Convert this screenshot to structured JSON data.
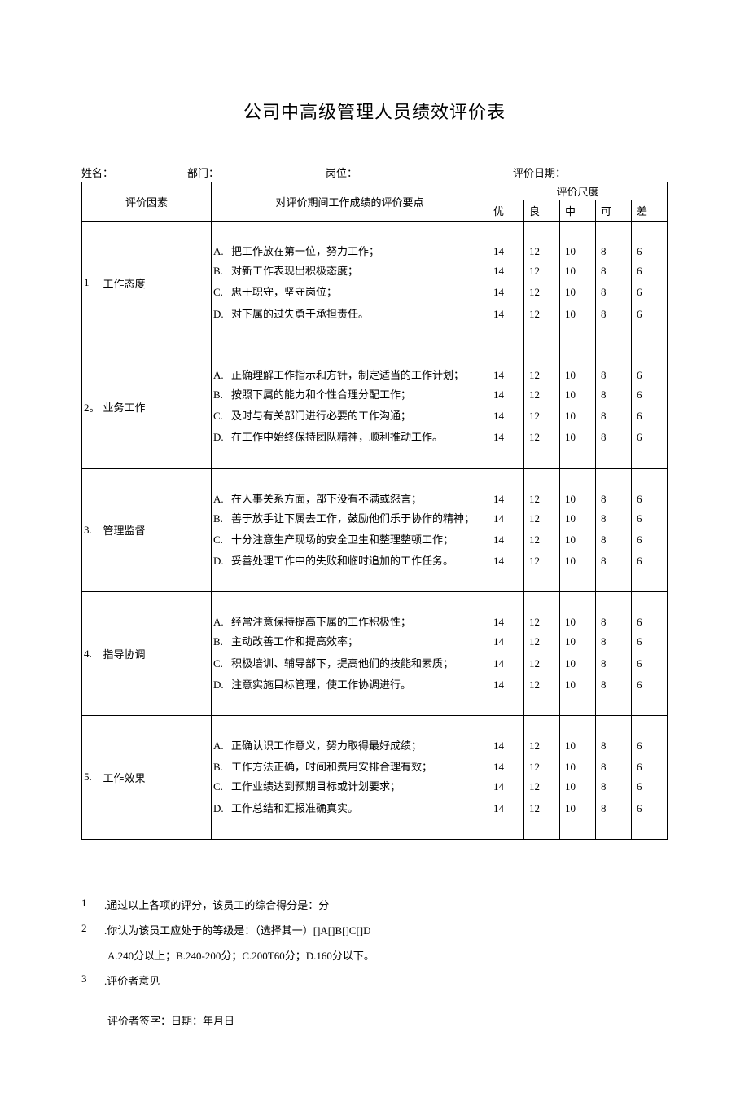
{
  "title": "公司中高级管理人员绩效评价表",
  "header_fields": {
    "name_label": "姓名：",
    "dept_label": "部门：",
    "post_label": "岗位：",
    "date_label": "评价日期：",
    "name_value": "",
    "dept_value": "",
    "post_value": "",
    "date_value": ""
  },
  "table_headers": {
    "factor": "评价因素",
    "criteria": "对评价期间工作成绩的评价要点",
    "scale": "评价尺度",
    "levels": [
      "优",
      "良",
      "中",
      "可",
      "差"
    ]
  },
  "scores": [
    14,
    12,
    10,
    8,
    6
  ],
  "sections": [
    {
      "num": "1",
      "name": "工作态度",
      "items": [
        {
          "marker": "A.",
          "text": "把工作放在第一位，努力工作；"
        },
        {
          "marker": "B.",
          "text": "对新工作表现出积极态度；"
        },
        {
          "marker": "C.",
          "text": "忠于职守，坚守岗位；"
        },
        {
          "marker": "D.",
          "text": "对下属的过失勇于承担责任。"
        }
      ],
      "gaps": [
        false,
        false,
        true,
        true
      ]
    },
    {
      "num": "2。",
      "name": "业务工作",
      "items": [
        {
          "marker": "A.",
          "text": "正确理解工作指示和方针，制定适当的工作计划；"
        },
        {
          "marker": "B.",
          "text": "按照下属的能力和个性合理分配工作；"
        },
        {
          "marker": "C.",
          "text": "及时与有关部门进行必要的工作沟通；"
        },
        {
          "marker": "D.",
          "text": "在工作中始终保持团队精神，顺利推动工作。"
        }
      ],
      "gaps": [
        false,
        false,
        true,
        true
      ]
    },
    {
      "num": "3.",
      "name": "管理监督",
      "items": [
        {
          "marker": "A.",
          "text": "在人事关系方面，部下没有不满或怨言；"
        },
        {
          "marker": "B.",
          "text": "善于放手让下属去工作，鼓励他们乐于协作的精神；"
        },
        {
          "marker": "C.",
          "text": "十分注意生产现场的安全卫生和整理整顿工作；"
        },
        {
          "marker": "D.",
          "text": "妥善处理工作中的失败和临时追加的工作任务。"
        }
      ],
      "gaps": [
        false,
        false,
        true,
        true
      ]
    },
    {
      "num": "4.",
      "name": "指导协调",
      "items": [
        {
          "marker": "A.",
          "text": "经常注意保持提高下属的工作积极性；"
        },
        {
          "marker": "B.",
          "text": "主动改善工作和提高效率；"
        },
        {
          "marker": "C.",
          "text": "积极培训、辅导部下，提高他们的技能和素质；"
        },
        {
          "marker": "D.",
          "text": "注意实施目标管理，使工作协调进行。"
        }
      ],
      "gaps": [
        false,
        false,
        true,
        true
      ]
    },
    {
      "num": "5.",
      "name": "工作效果",
      "items": [
        {
          "marker": "A.",
          "text": "正确认识工作意义，努力取得最好成绩；"
        },
        {
          "marker": "B.",
          "text": "工作方法正确，时间和费用安排合理有效；"
        },
        {
          "marker": "C.",
          "text": "工作业绩达到预期目标或计划要求；"
        },
        {
          "marker": "D.",
          "text": "工作总结和汇报准确真实。"
        }
      ],
      "gaps": [
        false,
        true,
        false,
        true
      ]
    }
  ],
  "notes": {
    "n1_num": "1",
    "n1_text": ".通过以上各项的评分，该员工的综合得分是：分",
    "n2_num": "2",
    "n2_text": ".你认为该员工应处于的等级是：（选择其一）[]A[]B[]C[]D",
    "n2_sub": "A.240分以上；B.240-200分；C.200T60分；D.160分以下。",
    "n3_num": "3",
    "n3_text": ".评价者意见",
    "sign": "评价者签字：日期：年月日"
  }
}
